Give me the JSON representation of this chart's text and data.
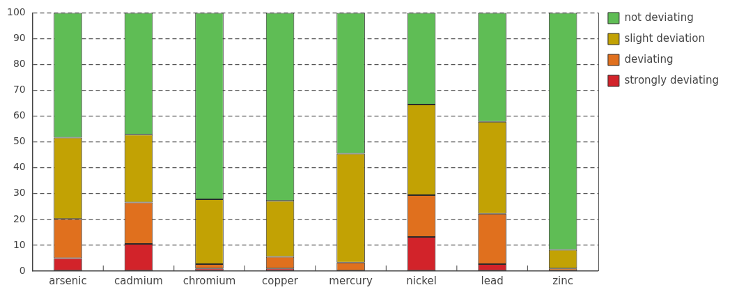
{
  "chart_data": {
    "type": "bar",
    "stacked": true,
    "categories": [
      "arsenic",
      "cadmium",
      "chromium",
      "copper",
      "mercury",
      "nickel",
      "lead",
      "zinc"
    ],
    "series": [
      {
        "name": "strongly deviating",
        "color": "#d2232a",
        "values": [
          5.0,
          10.5,
          1.0,
          1.0,
          0,
          13.2,
          2.7,
          0
        ]
      },
      {
        "name": "deviating",
        "color": "#e0701e",
        "values": [
          15.2,
          16.1,
          1.7,
          4.5,
          3.3,
          16.2,
          19.5,
          1.0
        ]
      },
      {
        "name": "slight deviation",
        "color": "#c2a204",
        "values": [
          31.5,
          26.2,
          25.1,
          21.7,
          42.2,
          35.1,
          35.6,
          7.2
        ]
      },
      {
        "name": "not deviating",
        "color": "#5fbd55",
        "values": [
          48.3,
          47.2,
          72.2,
          72.8,
          54.5,
          35.5,
          42.2,
          91.8
        ]
      }
    ],
    "ylim": [
      0,
      100
    ],
    "yticks": [
      0,
      10,
      20,
      30,
      40,
      50,
      60,
      70,
      80,
      90,
      100
    ],
    "grid": "y",
    "legend": "top right"
  }
}
